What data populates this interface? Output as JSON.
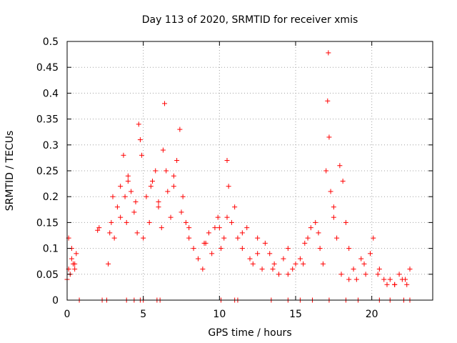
{
  "chart_data": {
    "type": "scatter",
    "title": "Day 113 of 2020, SRMTID for receiver xmis",
    "xlabel": "GPS time / hours",
    "ylabel": "SRMTID / TECUs",
    "xlim": [
      0,
      24
    ],
    "ylim": [
      0,
      0.5
    ],
    "x_ticks": [
      0,
      5,
      10,
      15,
      20
    ],
    "x_tick_labels": [
      "0",
      "5",
      "10",
      "15",
      "20"
    ],
    "y_ticks": [
      0,
      0.05,
      0.1,
      0.15,
      0.2,
      0.25,
      0.3,
      0.35,
      0.4,
      0.45,
      0.5
    ],
    "y_tick_labels": [
      "0",
      "0.05",
      "0.1",
      "0.15",
      "0.2",
      "0.25",
      "0.3",
      "0.35",
      "0.4",
      "0.45",
      "0.5"
    ],
    "grid": true,
    "marker": "+",
    "marker_color": "#ff0000",
    "series": [
      {
        "name": "SRMTID",
        "x": [
          0.0,
          0.1,
          0.2,
          0.3,
          0.4,
          0.5,
          0.6,
          0.1,
          0.3,
          0.5,
          2.0,
          2.1,
          2.7,
          2.8,
          2.9,
          3.0,
          3.1,
          3.3,
          3.5,
          3.7,
          3.8,
          3.9,
          4.0,
          4.2,
          4.4,
          4.6,
          4.7,
          4.8,
          4.9,
          5.2,
          5.4,
          5.6,
          5.8,
          6.0,
          6.2,
          6.3,
          6.4,
          6.6,
          6.8,
          7.0,
          7.2,
          7.4,
          7.6,
          7.8,
          8.0,
          8.3,
          8.6,
          8.9,
          9.1,
          9.3,
          9.5,
          9.7,
          9.9,
          10.1,
          10.3,
          10.5,
          10.6,
          10.8,
          11.0,
          11.2,
          11.5,
          11.8,
          12.0,
          12.2,
          12.5,
          12.8,
          13.0,
          13.3,
          13.6,
          13.9,
          14.2,
          14.5,
          14.8,
          15.0,
          15.3,
          15.6,
          15.8,
          16.0,
          16.3,
          16.6,
          16.8,
          17.0,
          17.1,
          17.15,
          17.2,
          17.3,
          17.5,
          17.7,
          17.9,
          18.1,
          18.3,
          18.5,
          18.8,
          19.0,
          19.3,
          19.6,
          19.9,
          20.1,
          20.4,
          20.8,
          21.0,
          21.2,
          21.5,
          21.8,
          22.0,
          22.3,
          22.5,
          3.5,
          4.0,
          4.5,
          5.0,
          5.5,
          6.0,
          6.5,
          7.0,
          7.5,
          8.0,
          9.0,
          10.0,
          10.5,
          11.5,
          12.5,
          13.5,
          14.5,
          15.5,
          16.5,
          17.5,
          18.0,
          18.5,
          19.5,
          20.5,
          21.5,
          22.2,
          0.8,
          2.3,
          2.6,
          3.9,
          4.4,
          4.8,
          5.0,
          5.9,
          6.1,
          10.1,
          11.0,
          11.2,
          13.4,
          14.5,
          15.3,
          16.1,
          17.2,
          18.3,
          19.1,
          20.5,
          21.2,
          22.1,
          22.5
        ],
        "y": [
          0.04,
          0.06,
          0.05,
          0.08,
          0.07,
          0.06,
          0.09,
          0.12,
          0.1,
          0.07,
          0.135,
          0.14,
          0.07,
          0.13,
          0.15,
          0.2,
          0.12,
          0.18,
          0.22,
          0.28,
          0.2,
          0.15,
          0.24,
          0.21,
          0.17,
          0.13,
          0.34,
          0.31,
          0.28,
          0.2,
          0.15,
          0.23,
          0.25,
          0.18,
          0.14,
          0.29,
          0.38,
          0.21,
          0.16,
          0.24,
          0.27,
          0.33,
          0.2,
          0.15,
          0.12,
          0.1,
          0.08,
          0.06,
          0.11,
          0.13,
          0.09,
          0.14,
          0.16,
          0.1,
          0.12,
          0.27,
          0.22,
          0.15,
          0.18,
          0.12,
          0.1,
          0.14,
          0.08,
          0.07,
          0.12,
          0.06,
          0.11,
          0.09,
          0.07,
          0.05,
          0.08,
          0.1,
          0.06,
          0.07,
          0.08,
          0.11,
          0.12,
          0.14,
          0.15,
          0.1,
          0.07,
          0.25,
          0.385,
          0.478,
          0.315,
          0.21,
          0.18,
          0.12,
          0.26,
          0.23,
          0.15,
          0.1,
          0.06,
          0.04,
          0.08,
          0.05,
          0.09,
          0.12,
          0.05,
          0.04,
          0.03,
          0.04,
          0.03,
          0.05,
          0.04,
          0.03,
          0.06,
          0.16,
          0.23,
          0.19,
          0.12,
          0.22,
          0.19,
          0.25,
          0.22,
          0.17,
          0.14,
          0.11,
          0.14,
          0.16,
          0.13,
          0.09,
          0.06,
          0.05,
          0.07,
          0.13,
          0.16,
          0.05,
          0.04,
          0.07,
          0.06,
          0.03,
          0.04,
          0.0,
          0.0,
          0.0,
          0.0,
          0.0,
          0.0,
          0.0,
          0.0,
          0.0,
          0.0,
          0.0,
          0.0,
          0.0,
          0.0,
          0.0,
          0.0,
          0.0,
          0.0,
          0.0,
          0.0,
          0.0,
          0.0,
          0.0
        ]
      }
    ]
  }
}
